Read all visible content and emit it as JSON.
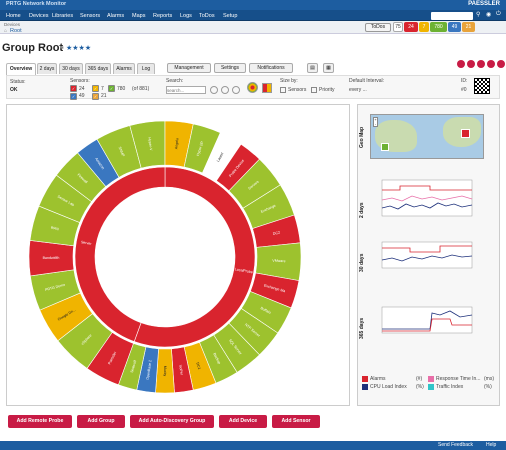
{
  "app": {
    "title": "PRTG Network Monitor",
    "brand": "PAESSLER"
  },
  "nav": {
    "items": [
      "Home",
      "Devices",
      "Libraries",
      "Sensors",
      "Alarms",
      "Maps",
      "Reports",
      "Logs",
      "ToDos",
      "Setup"
    ]
  },
  "header": {
    "search_placeholder": "",
    "todos": "ToDos",
    "todos_count": "75"
  },
  "status_counts": [
    {
      "value": "24",
      "color": "#d9242e"
    },
    {
      "value": "7",
      "color": "#f0b400"
    },
    {
      "value": "780",
      "color": "#6db233"
    },
    {
      "value": "49",
      "color": "#3a77c0"
    },
    {
      "value": "21",
      "color": "#e8a33a"
    }
  ],
  "breadcrumb": {
    "root": "Root",
    "sub": "Devices"
  },
  "page": {
    "title": "Group Root",
    "stars": "★★★★"
  },
  "tabs": [
    "Overview",
    "2 days",
    "30 days",
    "365 days",
    "Alarms",
    "Log"
  ],
  "tab_buttons": [
    "Management",
    "Settings",
    "Notifications"
  ],
  "filter": {
    "status_label": "Status:",
    "status_value": "OK",
    "sensors_label": "Sensors:",
    "sensor_counts": [
      "24",
      "7",
      "780",
      "49",
      "21"
    ],
    "sensors_of": "(of 881)",
    "search_label": "Search:",
    "search_placeholder": "search...",
    "size_label": "Size by:",
    "size_opts": [
      "Sensors",
      "Priority"
    ],
    "interval_label": "Default Interval:",
    "interval_value": "every ...",
    "id_label": "ID:",
    "id_value": "#0"
  },
  "sunburst": {
    "inner": [
      {
        "label": "LocalProbe",
        "color": "#d9242e",
        "start": 0,
        "end": 200
      },
      {
        "label": "Server",
        "color": "#d9242e",
        "start": 200,
        "end": 360
      }
    ],
    "outer": [
      {
        "label": "Paessler",
        "color": "#d9242e",
        "s": 200,
        "e": 215
      },
      {
        "label": "vSphere",
        "color": "#9dc22e",
        "s": 215,
        "e": 232
      },
      {
        "label": "Google Dri...",
        "color": "#f0b400",
        "s": 232,
        "e": 247
      },
      {
        "label": "PRTG Demo",
        "color": "#9dc22e",
        "s": 247,
        "e": 262
      },
      {
        "label": "Bandwidth",
        "color": "#d9242e",
        "s": 262,
        "e": 277
      },
      {
        "label": "WAN",
        "color": "#9dc22e",
        "s": 277,
        "e": 292
      },
      {
        "label": "Sensor Lab",
        "color": "#9dc22e",
        "s": 292,
        "e": 307
      },
      {
        "label": "Firewall",
        "color": "#9dc22e",
        "s": 307,
        "e": 320
      },
      {
        "label": "Amazon",
        "color": "#3a77c0",
        "s": 320,
        "e": 330
      },
      {
        "label": "SNMP",
        "color": "#9dc22e",
        "s": 330,
        "e": 345
      },
      {
        "label": "Hyper-V",
        "color": "#9dc22e",
        "s": 345,
        "e": 360
      },
      {
        "label": "Angelo",
        "color": "#f0b400",
        "s": 0,
        "e": 12
      },
      {
        "label": "Hyper (IP",
        "color": "#9dc22e",
        "s": 12,
        "e": 24
      },
      {
        "label": "Laurel",
        "color": "#ffffff",
        "s": 24,
        "e": 34
      },
      {
        "label": "Probe Device",
        "color": "#d9242e",
        "s": 34,
        "e": 44
      },
      {
        "label": "Servers",
        "color": "#9dc22e",
        "s": 44,
        "e": 58
      },
      {
        "label": "Exchange",
        "color": "#9dc22e",
        "s": 58,
        "e": 72
      },
      {
        "label": "DC2",
        "color": "#d9242e",
        "s": 72,
        "e": 84
      },
      {
        "label": "VMware",
        "color": "#9dc22e",
        "s": 84,
        "e": 100
      },
      {
        "label": "Exchange Ma",
        "color": "#d9242e",
        "s": 100,
        "e": 112
      },
      {
        "label": "Buffalo",
        "color": "#9dc22e",
        "s": 112,
        "e": 124
      },
      {
        "label": "NTP Server",
        "color": "#9dc22e",
        "s": 124,
        "e": 136
      },
      {
        "label": "SQL Server",
        "color": "#9dc22e",
        "s": 136,
        "e": 148
      },
      {
        "label": "Backup",
        "color": "#9dc22e",
        "s": 148,
        "e": 158
      },
      {
        "label": "DC1",
        "color": "#f0b400",
        "s": 158,
        "e": 168
      },
      {
        "label": "IsoPer",
        "color": "#d9242e",
        "s": 168,
        "e": 176
      },
      {
        "label": "Mucky",
        "color": "#f0b400",
        "s": 176,
        "e": 184
      },
      {
        "label": "OpenBase 2",
        "color": "#3a77c0",
        "s": 184,
        "e": 192
      },
      {
        "label": "Seawolf",
        "color": "#9dc22e",
        "s": 192,
        "e": 200
      }
    ]
  },
  "graphs": [
    {
      "label": "Geo Map"
    },
    {
      "label": "2 days"
    },
    {
      "label": "30 days"
    },
    {
      "label": "365 days"
    }
  ],
  "legend": [
    {
      "label": "Alarms",
      "color": "#d9242e",
      "unit": "(#)"
    },
    {
      "label": "Response Time In...",
      "color": "#e86fa8",
      "unit": "(ms)"
    },
    {
      "label": "CPU Load Index",
      "color": "#1c2f7a",
      "unit": "(%)"
    },
    {
      "label": "Traffic Index",
      "color": "#30c5c9",
      "unit": "(%)"
    }
  ],
  "actions": [
    "Add Remote Probe",
    "Add Group",
    "Add Auto-Discovery Group",
    "Add Device",
    "Add Sensor"
  ],
  "footer": {
    "feedback": "Send Feedback",
    "help": "Help"
  }
}
